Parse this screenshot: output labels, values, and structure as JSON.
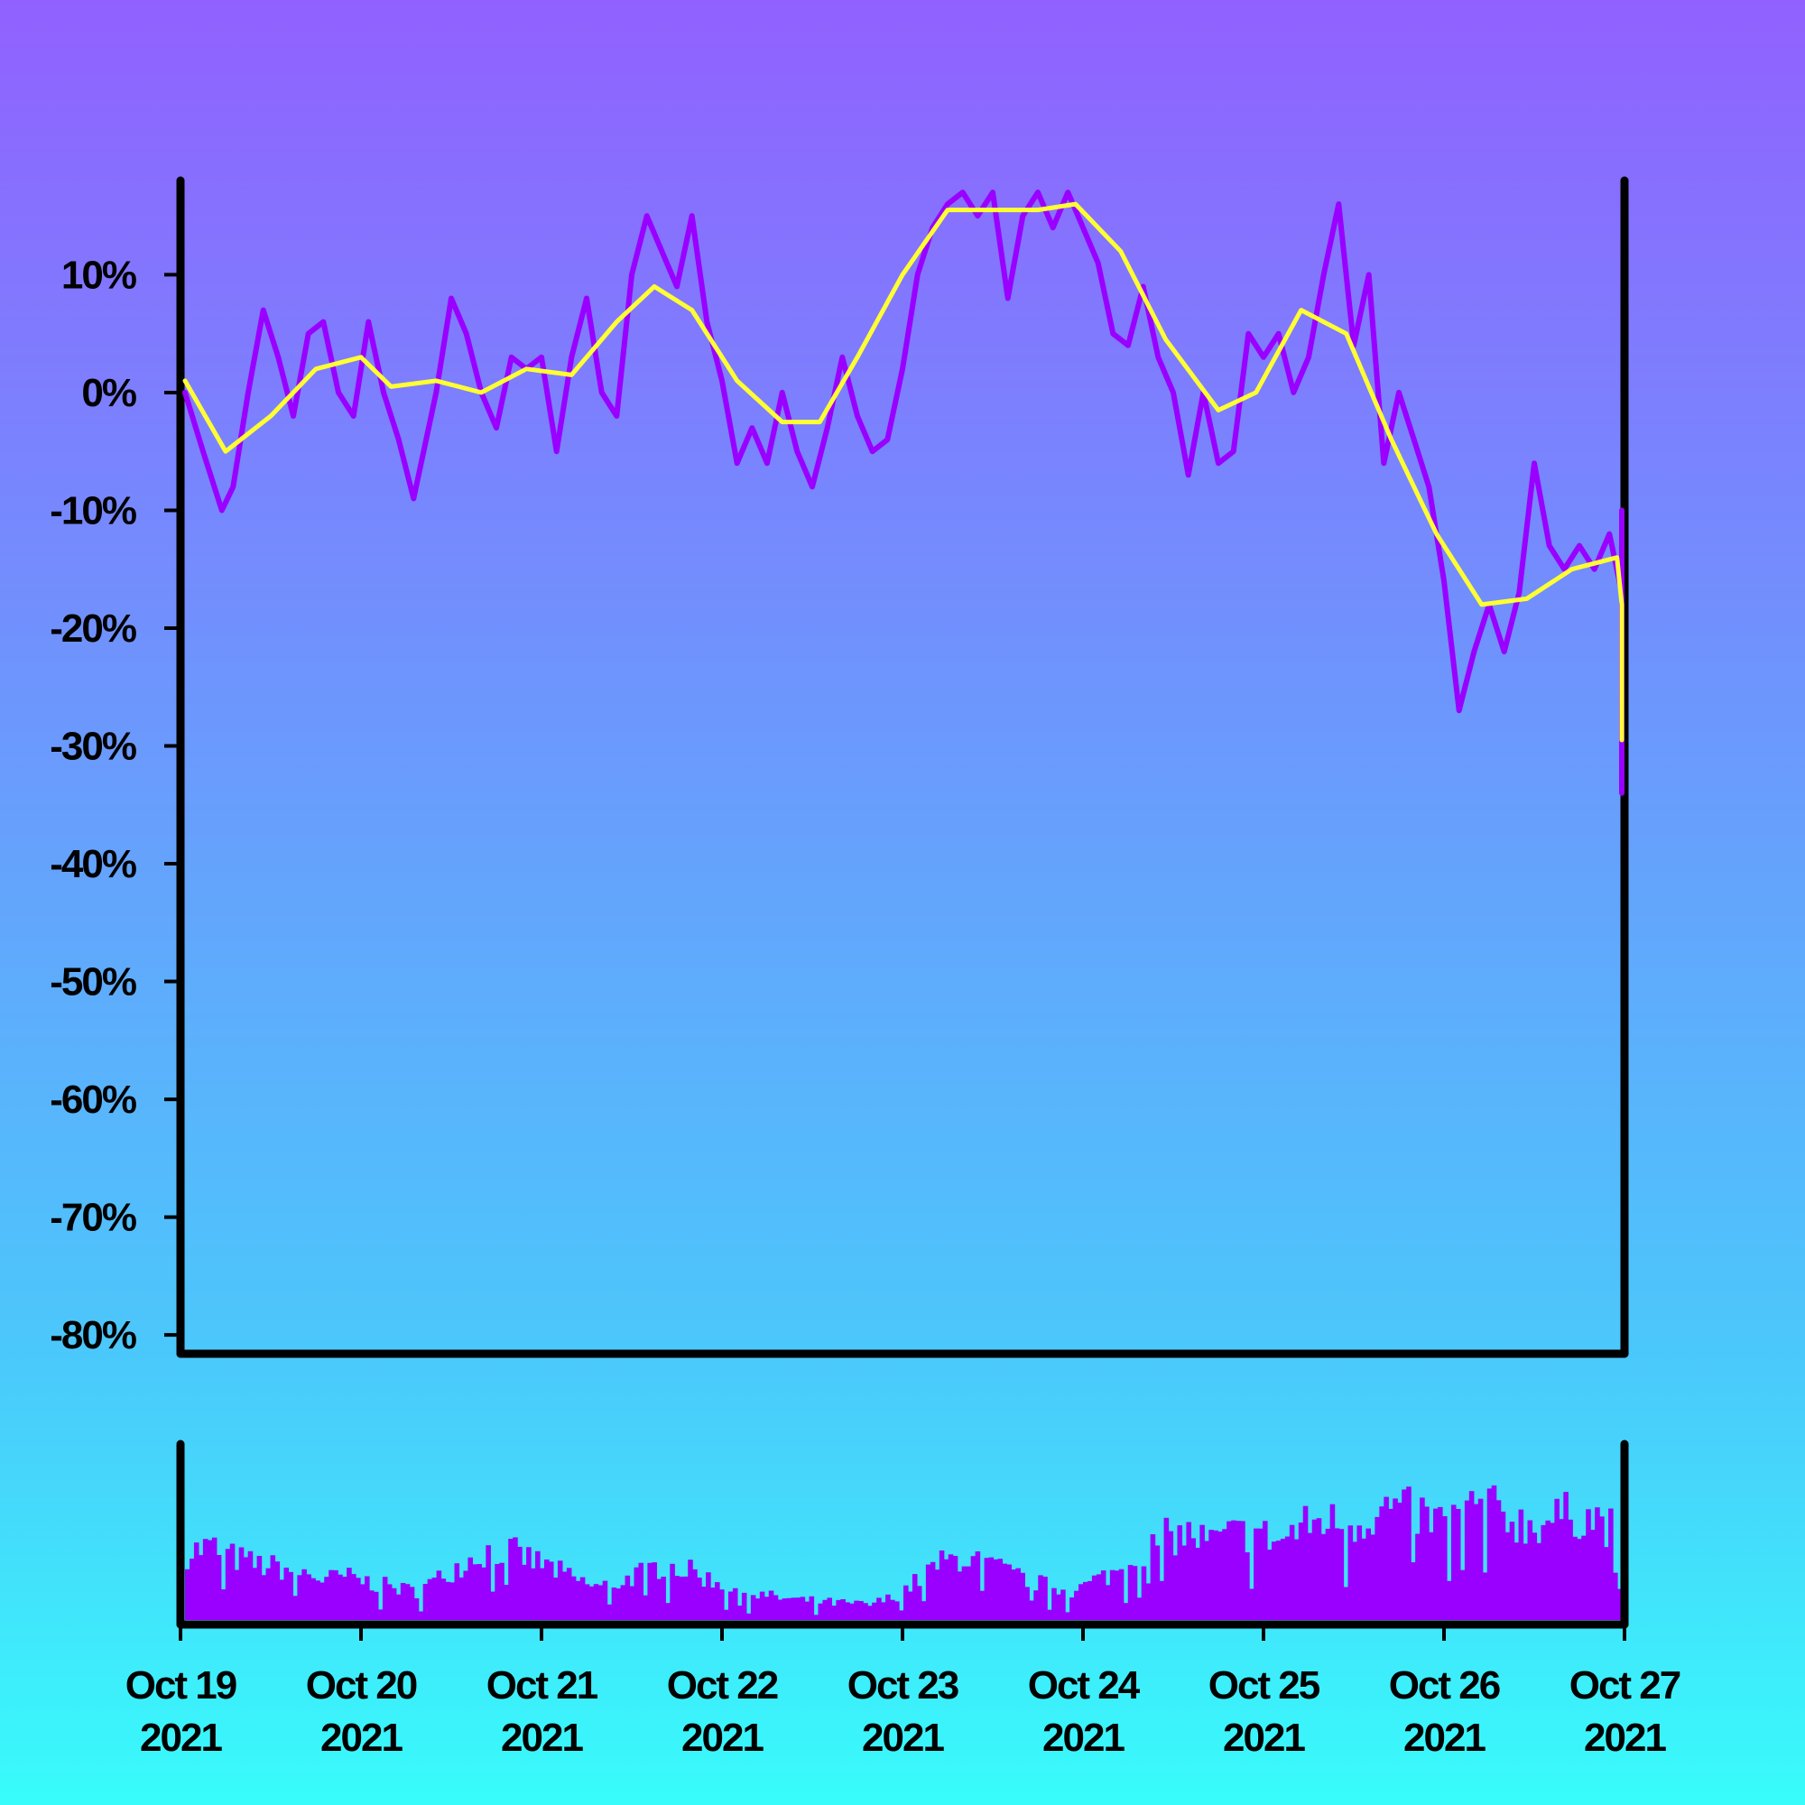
{
  "chart_data": {
    "type": "line",
    "y_axis": {
      "ticks": [
        10,
        0,
        -10,
        -20,
        -30,
        -40,
        -50,
        -60,
        -70,
        -80
      ],
      "tick_labels": [
        "10%",
        "0%",
        "-10%",
        "-20%",
        "-30%",
        "-40%",
        "-50%",
        "-60%",
        "-70%",
        "-80%"
      ],
      "ylim": [
        -81.6,
        18.0
      ]
    },
    "x_axis": {
      "xlim": [
        "2021-10-19",
        "2021-10-27"
      ],
      "ticks": [
        {
          "date": "2021-10-19",
          "line1": "Oct 19",
          "line2": "2021"
        },
        {
          "date": "2021-10-20",
          "line1": "Oct 20",
          "line2": "2021"
        },
        {
          "date": "2021-10-21",
          "line1": "Oct 21",
          "line2": "2021"
        },
        {
          "date": "2021-10-22",
          "line1": "Oct 22",
          "line2": "2021"
        },
        {
          "date": "2021-10-23",
          "line1": "Oct 23",
          "line2": "2021"
        },
        {
          "date": "2021-10-24",
          "line1": "Oct 24",
          "line2": "2021"
        },
        {
          "date": "2021-10-25",
          "line1": "Oct 25",
          "line2": "2021"
        },
        {
          "date": "2021-10-26",
          "line1": "Oct 26",
          "line2": "2021"
        },
        {
          "date": "2021-10-27",
          "line1": "Oct 27",
          "line2": "2021"
        }
      ]
    },
    "series": [
      {
        "role": "price change (%)",
        "color": "#9900ff",
        "points": [
          [
            "2021-10-19",
            0
          ],
          [
            "2021-10-19T03:00",
            -5
          ],
          [
            "2021-10-19T05:30",
            -10
          ],
          [
            "2021-10-19T07:00",
            -8
          ],
          [
            "2021-10-19T09:00",
            0
          ],
          [
            "2021-10-19T11:00",
            7
          ],
          [
            "2021-10-19T13:00",
            3
          ],
          [
            "2021-10-19T15:00",
            -2
          ],
          [
            "2021-10-19T17:00",
            5
          ],
          [
            "2021-10-19T19:00",
            6
          ],
          [
            "2021-10-19T21:00",
            0
          ],
          [
            "2021-10-19T23:00",
            -2
          ],
          [
            "2021-10-20T01:00",
            6
          ],
          [
            "2021-10-20T03:00",
            0
          ],
          [
            "2021-10-20T05:00",
            -4
          ],
          [
            "2021-10-20T07:00",
            -9
          ],
          [
            "2021-10-20T10:00",
            0
          ],
          [
            "2021-10-20T12:00",
            8
          ],
          [
            "2021-10-20T14:00",
            5
          ],
          [
            "2021-10-20T16:00",
            0
          ],
          [
            "2021-10-20T18:00",
            -3
          ],
          [
            "2021-10-20T20:00",
            3
          ],
          [
            "2021-10-20T22:00",
            2
          ],
          [
            "2021-10-21T00:00",
            3
          ],
          [
            "2021-10-21T02:00",
            -5
          ],
          [
            "2021-10-21T04:00",
            3
          ],
          [
            "2021-10-21T06:00",
            8
          ],
          [
            "2021-10-21T08:00",
            0
          ],
          [
            "2021-10-21T10:00",
            -2
          ],
          [
            "2021-10-21T12:00",
            10
          ],
          [
            "2021-10-21T14:00",
            15
          ],
          [
            "2021-10-21T16:00",
            12
          ],
          [
            "2021-10-21T18:00",
            9
          ],
          [
            "2021-10-21T20:00",
            15
          ],
          [
            "2021-10-21T22:00",
            6
          ],
          [
            "2021-10-22T00:00",
            1
          ],
          [
            "2021-10-22T02:00",
            -6
          ],
          [
            "2021-10-22T04:00",
            -3
          ],
          [
            "2021-10-22T06:00",
            -6
          ],
          [
            "2021-10-22T08:00",
            0
          ],
          [
            "2021-10-22T10:00",
            -5
          ],
          [
            "2021-10-22T12:00",
            -8
          ],
          [
            "2021-10-22T14:00",
            -3
          ],
          [
            "2021-10-22T16:00",
            3
          ],
          [
            "2021-10-22T18:00",
            -2
          ],
          [
            "2021-10-22T20:00",
            -5
          ],
          [
            "2021-10-22T22:00",
            -4
          ],
          [
            "2021-10-23T00:00",
            2
          ],
          [
            "2021-10-23T02:00",
            10
          ],
          [
            "2021-10-23T04:00",
            14
          ],
          [
            "2021-10-23T06:00",
            16
          ],
          [
            "2021-10-23T08:00",
            17
          ],
          [
            "2021-10-23T10:00",
            15
          ],
          [
            "2021-10-23T12:00",
            17
          ],
          [
            "2021-10-23T14:00",
            8
          ],
          [
            "2021-10-23T16:00",
            15
          ],
          [
            "2021-10-23T18:00",
            17
          ],
          [
            "2021-10-23T20:00",
            14
          ],
          [
            "2021-10-23T22:00",
            17
          ],
          [
            "2021-10-24T00:00",
            14
          ],
          [
            "2021-10-24T02:00",
            11
          ],
          [
            "2021-10-24T04:00",
            5
          ],
          [
            "2021-10-24T06:00",
            4
          ],
          [
            "2021-10-24T08:00",
            9
          ],
          [
            "2021-10-24T10:00",
            3
          ],
          [
            "2021-10-24T12:00",
            0
          ],
          [
            "2021-10-24T14:00",
            -7
          ],
          [
            "2021-10-24T16:00",
            0
          ],
          [
            "2021-10-24T18:00",
            -6
          ],
          [
            "2021-10-24T20:00",
            -5
          ],
          [
            "2021-10-24T22:00",
            5
          ],
          [
            "2021-10-25T00:00",
            3
          ],
          [
            "2021-10-25T02:00",
            5
          ],
          [
            "2021-10-25T04:00",
            0
          ],
          [
            "2021-10-25T06:00",
            3
          ],
          [
            "2021-10-25T08:00",
            10
          ],
          [
            "2021-10-25T10:00",
            16
          ],
          [
            "2021-10-25T12:00",
            4
          ],
          [
            "2021-10-25T14:00",
            10
          ],
          [
            "2021-10-25T16:00",
            -6
          ],
          [
            "2021-10-25T18:00",
            0
          ],
          [
            "2021-10-25T20:00",
            -4
          ],
          [
            "2021-10-25T22:00",
            -8
          ],
          [
            "2021-10-26T00:00",
            -16
          ],
          [
            "2021-10-26T02:00",
            -27
          ],
          [
            "2021-10-26T04:00",
            -22
          ],
          [
            "2021-10-26T06:00",
            -18
          ],
          [
            "2021-10-26T08:00",
            -22
          ],
          [
            "2021-10-26T10:00",
            -17
          ],
          [
            "2021-10-26T12:00",
            -6
          ],
          [
            "2021-10-26T14:00",
            -13
          ],
          [
            "2021-10-26T16:00",
            -15
          ],
          [
            "2021-10-26T18:00",
            -13
          ],
          [
            "2021-10-26T20:00",
            -15
          ],
          [
            "2021-10-26T22:00",
            -12
          ],
          [
            "2021-10-27T00:00",
            -17
          ],
          [
            "2021-10-27T02:00",
            -28
          ],
          [
            "2021-10-27T04:00",
            -17
          ],
          [
            "2021-10-27T06:00",
            -24
          ],
          [
            "2021-10-27T08:00",
            -32
          ],
          [
            "2021-10-27T10:00",
            -34
          ],
          [
            "2021-10-27T12:00",
            -24
          ],
          [
            "2021-10-27T14:00",
            -30
          ],
          [
            "2021-10-27T16:00",
            -17
          ],
          [
            "2021-10-27T18:00",
            -10
          ],
          [
            "2021-10-27T20:00",
            -22
          ],
          [
            "2021-10-27T22:00",
            -28
          ],
          [
            "2021-10-27",
            -25
          ]
        ]
      },
      {
        "role": "moving average (%)",
        "color": "#ffff33",
        "points": [
          [
            "2021-10-19",
            1
          ],
          [
            "2021-10-19T06:00",
            -5
          ],
          [
            "2021-10-19T12:00",
            -2
          ],
          [
            "2021-10-19T18:00",
            2
          ],
          [
            "2021-10-20T00:00",
            3
          ],
          [
            "2021-10-20T04:00",
            0.5
          ],
          [
            "2021-10-20T10:00",
            1
          ],
          [
            "2021-10-20T16:00",
            0
          ],
          [
            "2021-10-20T22:00",
            2
          ],
          [
            "2021-10-21T04:00",
            1.5
          ],
          [
            "2021-10-21T10:00",
            6
          ],
          [
            "2021-10-21T15:00",
            9
          ],
          [
            "2021-10-21T20:00",
            7
          ],
          [
            "2021-10-22T02:00",
            1
          ],
          [
            "2021-10-22T08:00",
            -2.5
          ],
          [
            "2021-10-22T13:00",
            -2.5
          ],
          [
            "2021-10-22T18:00",
            3
          ],
          [
            "2021-10-23T00:00",
            10
          ],
          [
            "2021-10-23T06:00",
            15.5
          ],
          [
            "2021-10-23T12:00",
            15.5
          ],
          [
            "2021-10-23T18:00",
            15.5
          ],
          [
            "2021-10-23T23:00",
            16
          ],
          [
            "2021-10-24T05:00",
            12
          ],
          [
            "2021-10-24T11:00",
            4.5
          ],
          [
            "2021-10-24T18:00",
            -1.5
          ],
          [
            "2021-10-24T23:00",
            0
          ],
          [
            "2021-10-25T05:00",
            7
          ],
          [
            "2021-10-25T11:00",
            5
          ],
          [
            "2021-10-25T17:00",
            -4
          ],
          [
            "2021-10-25T23:00",
            -12
          ],
          [
            "2021-10-26T05:00",
            -18
          ],
          [
            "2021-10-26T11:00",
            -17.5
          ],
          [
            "2021-10-26T17:00",
            -15
          ],
          [
            "2021-10-26T23:00",
            -14
          ],
          [
            "2021-10-27T05:00",
            -18
          ],
          [
            "2021-10-27T11:00",
            -24
          ],
          [
            "2021-10-27T17:00",
            -29
          ],
          [
            "2021-10-27T21:00",
            -29.5
          ],
          [
            "2021-10-27T23:00",
            -25
          ],
          [
            "2021-10-27",
            -21
          ]
        ]
      },
      {
        "role": "volume",
        "color": "#9900ff",
        "relative_levels": [
          0.48,
          0.52,
          0.45,
          0.4,
          0.38,
          0.35,
          0.3,
          0.32,
          0.28,
          0.25,
          0.22,
          0.3,
          0.4,
          0.48,
          0.5,
          0.44,
          0.38,
          0.3,
          0.25,
          0.28,
          0.35,
          0.4,
          0.36,
          0.3,
          0.24,
          0.2,
          0.18,
          0.16,
          0.15,
          0.14,
          0.13,
          0.18,
          0.28,
          0.4,
          0.45,
          0.42,
          0.35,
          0.3,
          0.25,
          0.22,
          0.3,
          0.36,
          0.5,
          0.58,
          0.6,
          0.55,
          0.6,
          0.62,
          0.55,
          0.65,
          0.7,
          0.66,
          0.72,
          0.78,
          0.75,
          0.68,
          0.74,
          0.8,
          0.72,
          0.66,
          0.7,
          0.74,
          0.7,
          0.62
        ]
      }
    ]
  }
}
